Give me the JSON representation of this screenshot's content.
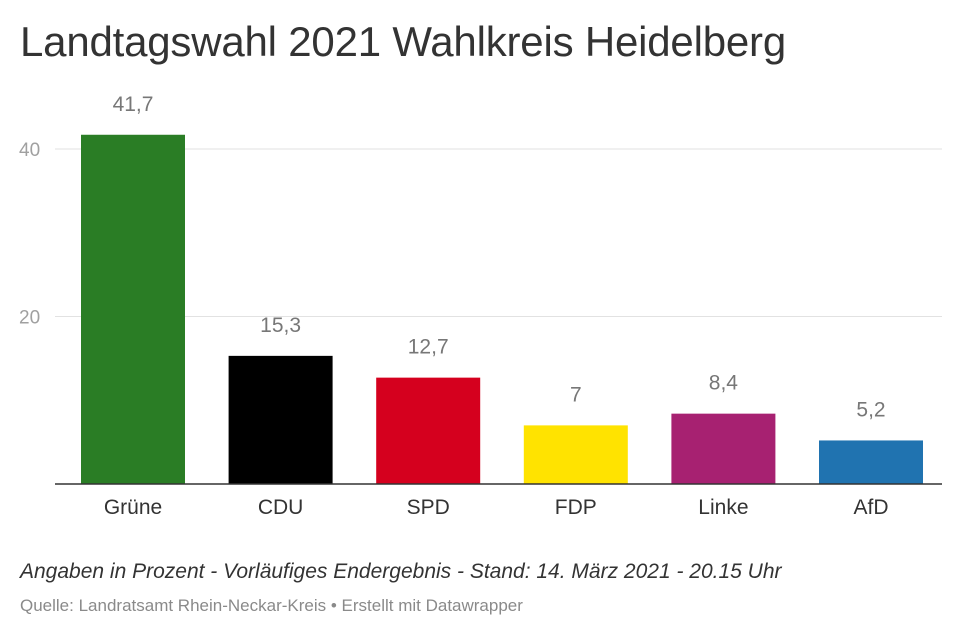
{
  "chart_data": {
    "type": "bar",
    "title": "Landtagswahl 2021 Wahlkreis Heidelberg",
    "categories": [
      "Grüne",
      "CDU",
      "SPD",
      "FDP",
      "Linke",
      "AfD"
    ],
    "values": [
      41.7,
      15.3,
      12.7,
      7,
      8.4,
      5.2
    ],
    "value_labels": [
      "41,7",
      "15,3",
      "12,7",
      "7",
      "8,4",
      "5,2"
    ],
    "colors": [
      "#2a7d25",
      "#000000",
      "#d5001e",
      "#ffe300",
      "#a72171",
      "#2073b0"
    ],
    "ylim": [
      0,
      45
    ],
    "yticks": [
      20,
      40
    ],
    "ytick_labels": [
      "20",
      "40"
    ],
    "xlabel": "",
    "ylabel": "",
    "grid": true
  },
  "notes": "Angaben in Prozent - Vorläufiges Endergebnis - Stand: 14. März 2021 - 20.15 Uhr",
  "source": "Quelle: Landratsamt Rhein-Neckar-Kreis • Erstellt mit Datawrapper"
}
